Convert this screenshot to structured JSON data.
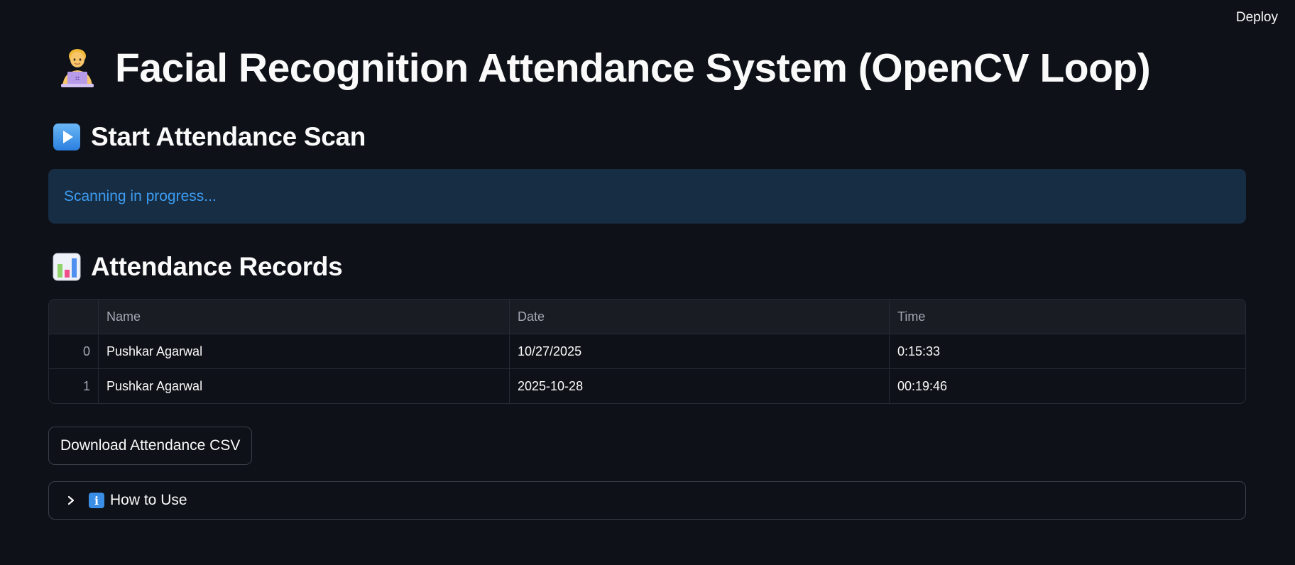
{
  "header": {
    "deploy_label": "Deploy"
  },
  "page": {
    "title": "Facial Recognition Attendance System (OpenCV Loop)",
    "title_icon": "technologist-emoji"
  },
  "scan_section": {
    "heading": "Start Attendance Scan",
    "icon": "play-button-emoji",
    "status_message": "Scanning in progress..."
  },
  "records_section": {
    "heading": "Attendance Records",
    "icon": "bar-chart-emoji",
    "columns": [
      "",
      "Name",
      "Date",
      "Time"
    ],
    "rows": [
      {
        "index": "0",
        "name": "Pushkar Agarwal",
        "date": "10/27/2025",
        "time": "0:15:33"
      },
      {
        "index": "1",
        "name": "Pushkar Agarwal",
        "date": "2025-10-28",
        "time": "00:19:46"
      }
    ]
  },
  "download_button": {
    "label": "Download Attendance CSV"
  },
  "expander": {
    "label": "How to Use",
    "icon": "information-icon",
    "icon_glyph": "i"
  },
  "colors": {
    "background": "#0e1117",
    "info_bg": "#172d43",
    "info_text": "#3d9df3",
    "border": "#262a33"
  }
}
